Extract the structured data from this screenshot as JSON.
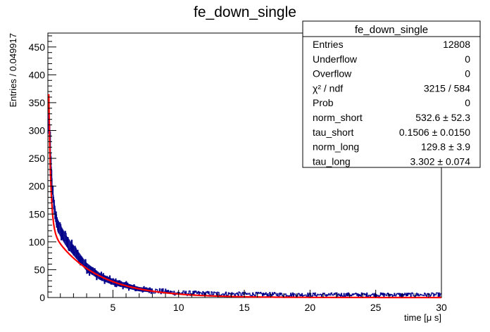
{
  "chart_data": {
    "type": "histogram",
    "title": "fe_down_single",
    "xlabel": "time [μ s]",
    "ylabel": "Entries / 0.049917",
    "xlim": [
      0.05,
      30
    ],
    "ylim": [
      0,
      475
    ],
    "x_ticks": [
      5,
      10,
      15,
      20,
      25,
      30
    ],
    "y_ticks": [
      0,
      50,
      100,
      150,
      200,
      250,
      300,
      350,
      400,
      450
    ],
    "histogram_color": "#00008b",
    "fit_color": "#ff0000",
    "fit_function": {
      "form": "norm_short*exp(-t/tau_short) + norm_long*exp(-t/tau_long)",
      "norm_short": 532.6,
      "tau_short": 0.1506,
      "norm_long": 129.8,
      "tau_long": 3.302
    },
    "stats_box": {
      "title": "fe_down_single",
      "rows": [
        {
          "label": "Entries",
          "value": "12808"
        },
        {
          "label": "Underflow",
          "value": "0"
        },
        {
          "label": "Overflow",
          "value": "0"
        },
        {
          "label": "χ² / ndf",
          "value": "3215 / 584"
        },
        {
          "label": "Prob",
          "value": "0"
        },
        {
          "label": "norm_short",
          "value": "532.6  ± 52.3"
        },
        {
          "label": "tau_short",
          "value": "0.1506  ± 0.0150"
        },
        {
          "label": "norm_long",
          "value": "129.8  ± 3.9"
        },
        {
          "label": "tau_long",
          "value": "3.302  ± 0.074"
        }
      ]
    },
    "bin_width": 0.049917,
    "bin_samples": [
      {
        "x": 0.1,
        "y": 312
      },
      {
        "x": 0.15,
        "y": 322
      },
      {
        "x": 0.2,
        "y": 285
      },
      {
        "x": 0.3,
        "y": 230
      },
      {
        "x": 0.4,
        "y": 190
      },
      {
        "x": 0.5,
        "y": 165
      },
      {
        "x": 0.6,
        "y": 150
      },
      {
        "x": 0.8,
        "y": 130
      },
      {
        "x": 1.0,
        "y": 120
      },
      {
        "x": 1.5,
        "y": 100
      },
      {
        "x": 2.0,
        "y": 85
      },
      {
        "x": 3.0,
        "y": 55
      },
      {
        "x": 4.0,
        "y": 38
      },
      {
        "x": 5.0,
        "y": 28
      },
      {
        "x": 7.0,
        "y": 15
      },
      {
        "x": 10.0,
        "y": 8
      },
      {
        "x": 15.0,
        "y": 6
      },
      {
        "x": 20.0,
        "y": 5
      },
      {
        "x": 25.0,
        "y": 5
      },
      {
        "x": 29.9,
        "y": 5
      }
    ]
  }
}
